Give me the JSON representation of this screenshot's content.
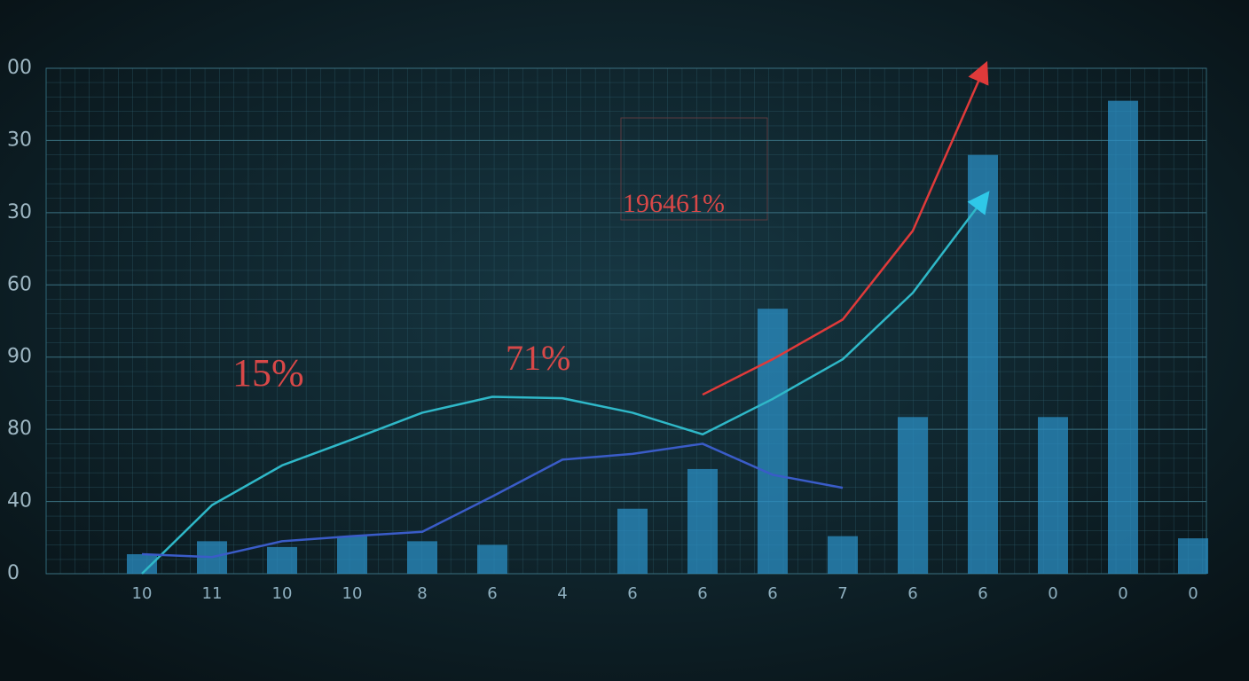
{
  "chart_data": {
    "type": "bar",
    "categories": [
      "10",
      "11",
      "10",
      "10",
      "8",
      "6",
      "4",
      "6",
      "6",
      "6",
      "7",
      "6",
      "6",
      "0",
      "0",
      "0"
    ],
    "values": [
      0.27,
      0.45,
      0.37,
      0.52,
      0.45,
      0.4,
      null,
      0.9,
      1.45,
      3.67,
      0.52,
      2.17,
      5.8,
      2.17,
      6.55,
      0.49
    ],
    "color": "#2b8fc4",
    "series": [
      {
        "type": "line",
        "color": "#2fb8c8",
        "values": [
          0,
          0.95,
          1.5,
          1.86,
          2.23,
          2.45,
          2.43,
          2.23,
          1.93,
          2.42,
          2.97,
          3.89,
          5.18,
          null,
          null,
          null
        ]
      },
      {
        "type": "line",
        "color": "#3a5cc8",
        "values": [
          0.27,
          0.23,
          0.45,
          0.52,
          0.58,
          1.07,
          1.58,
          1.66,
          1.8,
          1.37,
          1.19,
          null,
          null,
          null,
          null,
          null
        ]
      },
      {
        "type": "line",
        "color": "#e03a3a",
        "values": [
          null,
          null,
          null,
          null,
          null,
          null,
          null,
          null,
          2.48,
          2.97,
          3.52,
          4.75,
          6.96,
          null,
          null,
          null
        ]
      }
    ],
    "ylim": [
      0,
      7
    ],
    "yticks": [
      {
        "value": 0,
        "label": "0"
      },
      {
        "value": 1,
        "label": "40"
      },
      {
        "value": 2,
        "label": "80"
      },
      {
        "value": 3,
        "label": "90"
      },
      {
        "value": 4,
        "label": "60"
      },
      {
        "value": 5,
        "label": "30"
      },
      {
        "value": 6,
        "label": "30"
      },
      {
        "value": 7,
        "label": "00"
      }
    ],
    "annotations": [
      "15%",
      "71%",
      "196461%"
    ],
    "grid": true
  }
}
